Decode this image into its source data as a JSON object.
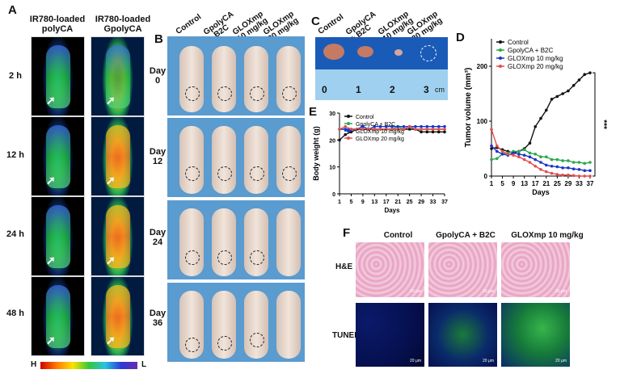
{
  "panelA": {
    "label": "A",
    "columns": [
      "IR780-loaded\npolyCA",
      "IR780-loaded\nGpolyCA"
    ],
    "col1": "IR780-loaded polyCA",
    "col2": "IR780-loaded GpolyCA",
    "times": [
      "2 h",
      "12 h",
      "24 h",
      "48 h"
    ],
    "colorbar_left": "H",
    "colorbar_right": "L"
  },
  "panelB": {
    "label": "B",
    "groups": [
      "Control",
      "GpolyCA + B2C",
      "GLOXmp 10 mg/kg",
      "GLOXmp 20 mg/kg"
    ],
    "days": [
      "Day 0",
      "Day 12",
      "Day 24",
      "Day 36"
    ]
  },
  "panelC": {
    "label": "C",
    "groups": [
      "Control",
      "GpolyCA + B2C",
      "GLOXmp 10 mg/kg",
      "GLOXmp 20 mg/kg"
    ],
    "ruler_ticks": [
      "0",
      "1",
      "2",
      "3"
    ],
    "ruler_unit": "cm"
  },
  "panelF": {
    "label": "F",
    "columns": [
      "Control",
      "GpolyCA + B2C",
      "GLOXmp 10 mg/kg"
    ],
    "rows": [
      "H&E",
      "TUNEL"
    ],
    "scale_text": "20 μm"
  },
  "chart_data": [
    {
      "id": "D",
      "type": "line",
      "title": "",
      "panel_label": "D",
      "xlabel": "Days",
      "ylabel": "Tumor volume (mm³)",
      "x": [
        1,
        3,
        5,
        7,
        9,
        11,
        13,
        15,
        17,
        19,
        21,
        23,
        25,
        27,
        29,
        31,
        33,
        35,
        37
      ],
      "xticks": [
        1,
        5,
        9,
        13,
        17,
        21,
        25,
        29,
        33,
        37
      ],
      "ylim": [
        0,
        250
      ],
      "yticks": [
        0,
        100,
        200
      ],
      "legend": "top-left",
      "significance": "***",
      "series": [
        {
          "name": "Control",
          "color": "#111111",
          "values": [
            50,
            52,
            48,
            45,
            42,
            45,
            50,
            60,
            90,
            105,
            120,
            140,
            145,
            150,
            155,
            165,
            175,
            185,
            188
          ]
        },
        {
          "name": "GpolyCA + B2C",
          "color": "#2ea84a",
          "values": [
            30,
            32,
            40,
            42,
            45,
            45,
            48,
            42,
            40,
            35,
            35,
            30,
            30,
            28,
            28,
            25,
            25,
            23,
            25
          ]
        },
        {
          "name": "GLOXmp 10 mg/kg",
          "color": "#1a36c8",
          "values": [
            55,
            45,
            40,
            38,
            42,
            40,
            38,
            35,
            30,
            25,
            20,
            18,
            17,
            15,
            15,
            13,
            12,
            10,
            10
          ]
        },
        {
          "name": "GLOXmp 20 mg/kg",
          "color": "#e05050",
          "values": [
            85,
            55,
            45,
            40,
            38,
            35,
            30,
            25,
            18,
            12,
            8,
            5,
            3,
            2,
            2,
            1,
            0,
            0,
            0
          ]
        }
      ]
    },
    {
      "id": "E",
      "type": "line",
      "title": "",
      "panel_label": "E",
      "xlabel": "Days",
      "ylabel": "Body weight (g)",
      "x": [
        1,
        3,
        5,
        7,
        9,
        11,
        13,
        15,
        17,
        19,
        21,
        23,
        25,
        27,
        29,
        31,
        33,
        35,
        37
      ],
      "xticks": [
        1,
        5,
        9,
        13,
        17,
        21,
        25,
        29,
        33,
        37
      ],
      "ylim": [
        0,
        30
      ],
      "yticks": [
        0,
        10,
        20,
        30
      ],
      "legend": "top-left",
      "series": [
        {
          "name": "Control",
          "color": "#111111",
          "values": [
            20,
            22,
            23,
            24,
            24,
            24,
            24,
            24,
            24,
            24,
            24,
            24,
            24,
            24,
            23,
            23,
            23,
            23,
            23
          ]
        },
        {
          "name": "GpolyCA + B2C",
          "color": "#2ea84a",
          "values": [
            24,
            24,
            24,
            24,
            24,
            24,
            24,
            24,
            24,
            24,
            25,
            24,
            25,
            24,
            24,
            24,
            24,
            24,
            24
          ]
        },
        {
          "name": "GLOXmp 10 mg/kg",
          "color": "#1a36c8",
          "values": [
            24,
            24,
            24,
            24,
            25,
            24,
            25,
            25,
            25,
            25,
            25,
            25,
            25,
            25,
            25,
            25,
            25,
            25,
            25
          ]
        },
        {
          "name": "GLOXmp 20 mg/kg",
          "color": "#e05050",
          "values": [
            24,
            25,
            24,
            24,
            24,
            24,
            24,
            24,
            24,
            24,
            24,
            24,
            25,
            24,
            24,
            24,
            24,
            24,
            24
          ]
        }
      ]
    }
  ]
}
